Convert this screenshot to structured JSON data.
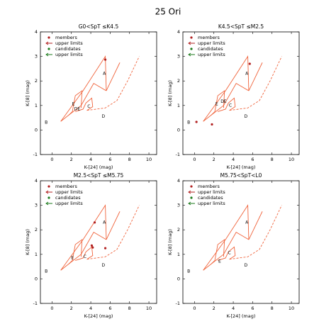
{
  "title": "25 Ori",
  "chart_data": [
    {
      "type": "scatter",
      "title": "G0<SpT ≤K4.5",
      "xlabel": "K-[24] (mag)",
      "ylabel": "K-[8] (mag)",
      "xlim": [
        -1.2,
        10.8
      ],
      "ylim": [
        -1,
        4
      ],
      "xticks": [
        0,
        2,
        4,
        6,
        8,
        10
      ],
      "yticks": [
        -1,
        0,
        1,
        2,
        3,
        4
      ],
      "legend": "upper left",
      "annotations": [
        "A",
        "B",
        "C",
        "D",
        "E",
        "DE"
      ],
      "series": [
        {
          "name": "members",
          "color": "#b22222",
          "marker": "dot",
          "x": [
            5.5
          ],
          "values": [
            2.87
          ]
        },
        {
          "name": "upper limits",
          "color": "#b22222",
          "marker": "arrow",
          "x": [],
          "values": []
        },
        {
          "name": "candidates",
          "color": "#1b7a1b",
          "marker": "dot",
          "x": [],
          "values": []
        },
        {
          "name": "upper limits",
          "color": "#1b7a1b",
          "marker": "arrow",
          "x": [],
          "values": []
        }
      ]
    },
    {
      "type": "scatter",
      "title": "K4.5<SpT ≤M2.5",
      "xlabel": "K-[24] (mag)",
      "ylabel": "K-[8] (mag)",
      "xlim": [
        -1.2,
        10.8
      ],
      "ylim": [
        -1,
        4
      ],
      "xticks": [
        0,
        2,
        4,
        6,
        8,
        10
      ],
      "yticks": [
        -1,
        0,
        1,
        2,
        3,
        4
      ],
      "legend": "upper left",
      "annotations": [
        "A",
        "B",
        "C",
        "D",
        "E",
        "DE"
      ],
      "series": [
        {
          "name": "members",
          "color": "#b22222",
          "marker": "dot",
          "x": [
            0.2,
            1.8,
            5.7
          ],
          "values": [
            0.33,
            0.23,
            2.7
          ]
        },
        {
          "name": "upper limits",
          "color": "#b22222",
          "marker": "arrow",
          "x": [],
          "values": []
        },
        {
          "name": "candidates",
          "color": "#1b7a1b",
          "marker": "dot",
          "x": [],
          "values": []
        },
        {
          "name": "upper limits",
          "color": "#1b7a1b",
          "marker": "arrow",
          "x": [],
          "values": []
        }
      ]
    },
    {
      "type": "scatter",
      "title": "M2.5<SpT ≤M5.75",
      "xlabel": "K-[24] (mag)",
      "ylabel": "K-[8] (mag)",
      "xlim": [
        -1.2,
        10.8
      ],
      "ylim": [
        -1,
        4
      ],
      "xticks": [
        0,
        2,
        4,
        6,
        8,
        10
      ],
      "yticks": [
        -1,
        0,
        1,
        2,
        3,
        4
      ],
      "legend": "upper left",
      "annotations": [
        "A",
        "B",
        "C",
        "D",
        "E"
      ],
      "series": [
        {
          "name": "members",
          "color": "#b22222",
          "marker": "dot",
          "x": [
            4.4,
            4.1,
            4.2,
            5.5
          ],
          "values": [
            2.3,
            1.36,
            1.28,
            1.25
          ]
        },
        {
          "name": "upper limits",
          "color": "#b22222",
          "marker": "arrow",
          "x": [],
          "values": []
        },
        {
          "name": "candidates",
          "color": "#1b7a1b",
          "marker": "dot",
          "x": [],
          "values": []
        },
        {
          "name": "upper limits",
          "color": "#1b7a1b",
          "marker": "arrow",
          "x": [],
          "values": []
        }
      ]
    },
    {
      "type": "scatter",
      "title": "M5.75<SpT<L0",
      "xlabel": "K-[24] (mag)",
      "ylabel": "K-[8] (mag)",
      "xlim": [
        -1.2,
        10.8
      ],
      "ylim": [
        -1,
        4
      ],
      "xticks": [
        0,
        2,
        4,
        6,
        8,
        10
      ],
      "yticks": [
        -1,
        0,
        1,
        2,
        3,
        4
      ],
      "legend": "upper left",
      "annotations": [
        "A",
        "B",
        "C",
        "D",
        "E"
      ],
      "series": [
        {
          "name": "members",
          "color": "#b22222",
          "marker": "dot",
          "x": [],
          "values": []
        },
        {
          "name": "upper limits",
          "color": "#b22222",
          "marker": "arrow",
          "x": [],
          "values": []
        },
        {
          "name": "candidates",
          "color": "#1b7a1b",
          "marker": "dot",
          "x": [],
          "values": []
        },
        {
          "name": "upper limits",
          "color": "#1b7a1b",
          "marker": "arrow",
          "x": [],
          "values": []
        }
      ]
    }
  ]
}
